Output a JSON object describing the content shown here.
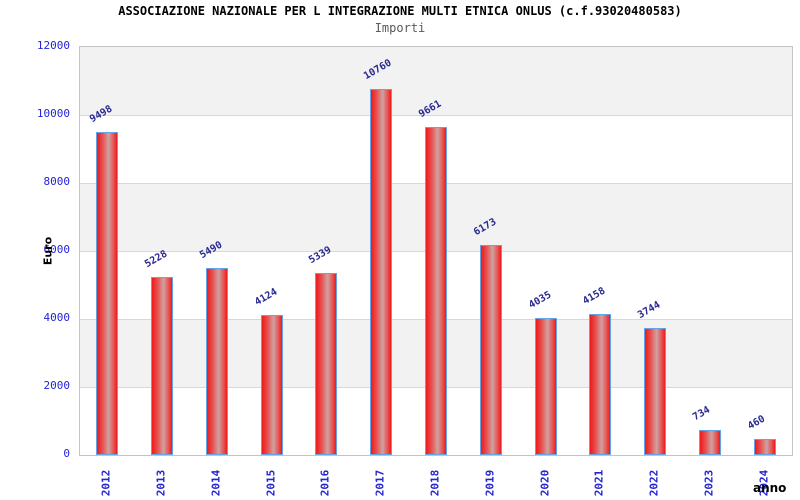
{
  "chart_data": {
    "type": "bar",
    "title": "ASSOCIAZIONE NAZIONALE PER L INTEGRAZIONE MULTI ETNICA ONLUS (c.f.93020480583)",
    "subtitle": "Importi",
    "xlabel": "anno",
    "ylabel": "Euro",
    "categories": [
      "2012",
      "2013",
      "2014",
      "2015",
      "2016",
      "2017",
      "2018",
      "2019",
      "2020",
      "2021",
      "2022",
      "2023",
      "2024"
    ],
    "values": [
      9498,
      5228,
      5490,
      4124,
      5339,
      10760,
      9661,
      6173,
      4035,
      4158,
      3744,
      734,
      460
    ],
    "ylim": [
      0,
      12000
    ],
    "yticks": [
      0,
      2000,
      4000,
      6000,
      8000,
      10000,
      12000
    ],
    "legend_position": "none",
    "grid": "horizontal gridlines every 2000 with alternating gray/white bands (gray topmost)",
    "colors": {
      "bar_fill_edge": "#ee1b1b",
      "bar_fill_center": "#d0a2a2",
      "bar_border": "#63a3e6",
      "axis_tick_label": "#2424d2",
      "value_label": "#29298f",
      "band_gray": "#f2f2f2",
      "gridline": "#d8d8d8",
      "plot_border": "#c4c4c4",
      "title": "#000000",
      "subtitle": "#5a5a5a",
      "axis_title": "#000000",
      "background": "#ffffff"
    }
  }
}
